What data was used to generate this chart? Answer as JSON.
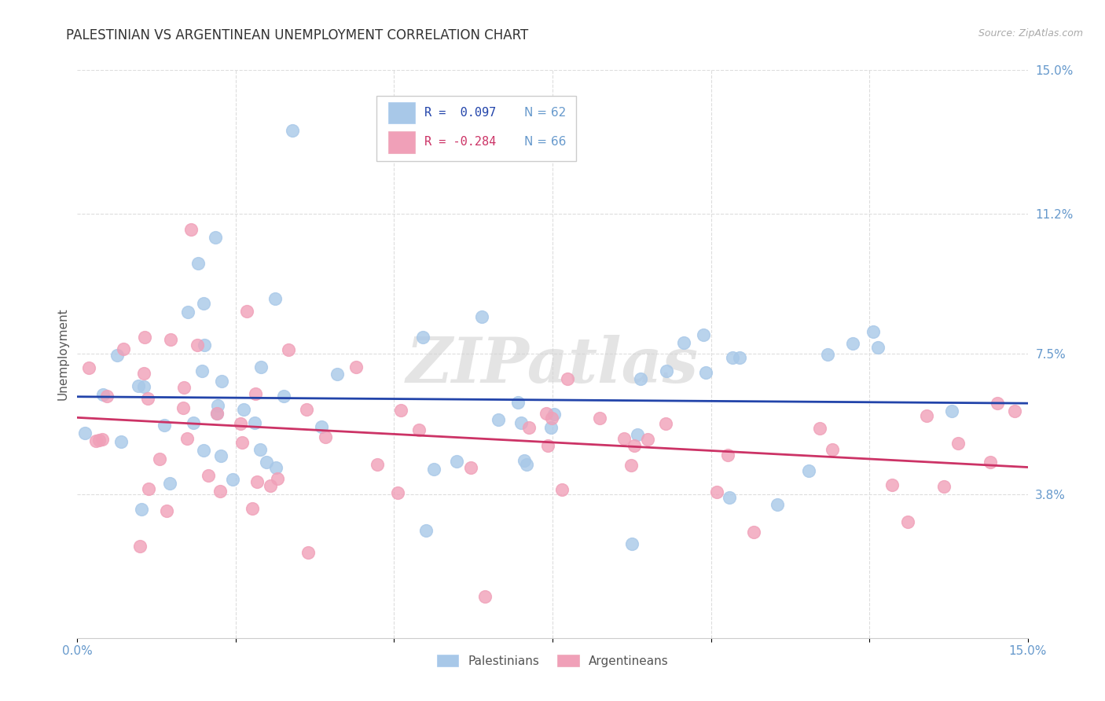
{
  "title": "PALESTINIAN VS ARGENTINEAN UNEMPLOYMENT CORRELATION CHART",
  "source": "Source: ZipAtlas.com",
  "ylabel": "Unemployment",
  "xlim": [
    0.0,
    0.15
  ],
  "ylim": [
    0.0,
    0.15
  ],
  "yticks_right": [
    0.038,
    0.075,
    0.112,
    0.15
  ],
  "ytick_labels_right": [
    "3.8%",
    "7.5%",
    "11.2%",
    "15.0%"
  ],
  "blue_color": "#a8c8e8",
  "pink_color": "#f0a0b8",
  "line_blue": "#2244aa",
  "line_pink": "#cc3366",
  "legend_R1": "R =  0.097",
  "legend_N1": "N = 62",
  "legend_R2": "R = -0.284",
  "legend_N2": "N = 66",
  "legend_label1": "Palestinians",
  "legend_label2": "Argentineans",
  "watermark": "ZIPatlas",
  "title_color": "#333333",
  "axis_color": "#6699cc",
  "grid_color": "#dddddd"
}
